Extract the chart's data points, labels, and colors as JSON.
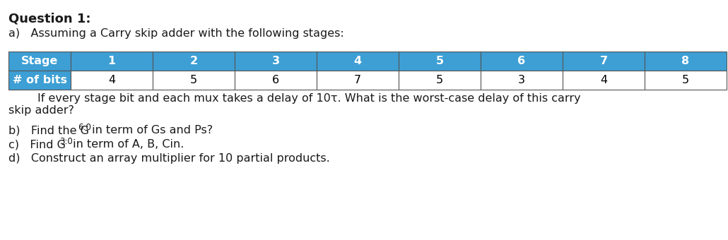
{
  "title": "Question 1:",
  "part_a_intro": "a)   Assuming a Carry skip adder with the following stages:",
  "table_header": [
    "Stage",
    "1",
    "2",
    "3",
    "4",
    "5",
    "6",
    "7",
    "8"
  ],
  "table_row": [
    "# of bits",
    "4",
    "5",
    "6",
    "7",
    "5",
    "3",
    "4",
    "5"
  ],
  "header_bg_color": "#3d9fd4",
  "header_text_color": "#FFFFFF",
  "row_label_bg_color": "#3d9fd4",
  "row_label_text_color": "#FFFFFF",
  "row_data_bg_color": "#FFFFFF",
  "row_data_text_color": "#000000",
  "table_border_color": "#555555",
  "part_a_line1": "        If every stage bit and each mux takes a delay of 10τ. What is the worst-case delay of this carry",
  "part_a_line2": "skip adder?",
  "part_b_pre": "b)   Find the G",
  "part_b_sub": "6:0",
  "part_b_post": " in term of Gs and Ps?",
  "part_c_pre": "c)   Find G",
  "part_c_sub": "3:0",
  "part_c_post": " in term of A, B, Cin.",
  "part_d": "d)   Construct an array multiplier for 10 partial products.",
  "bg_color": "#FFFFFF",
  "text_color": "#1a1a1a",
  "font_size_title": 13,
  "font_size_body": 11.5,
  "font_size_table": 11.5
}
